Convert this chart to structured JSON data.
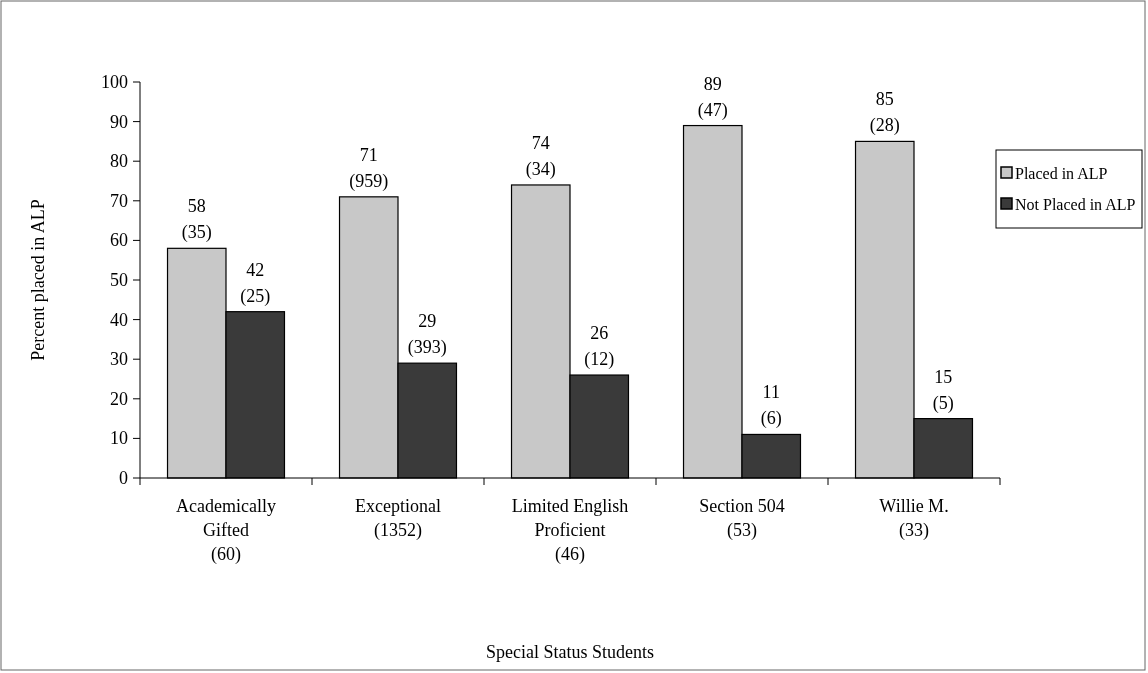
{
  "chart_data": {
    "type": "bar",
    "xlabel": "Special Status Students",
    "ylabel": "Percent placed in ALP",
    "categories": [
      "Academically\nGifted\n(60)",
      "Exceptional\n(1352)",
      "Limited English\nProficient\n(46)",
      "Section 504\n(53)",
      "Willie M.\n(33)"
    ],
    "series": [
      {
        "name": "Placed in ALP",
        "color": "#c8c8c8",
        "values": [
          58,
          71,
          74,
          89,
          85
        ],
        "value_labels": [
          "58\n(35)",
          "71\n(959)",
          "74\n(34)",
          "89\n(47)",
          "85\n(28)"
        ]
      },
      {
        "name": "Not Placed in ALP",
        "color": "#3a3a3a",
        "values": [
          42,
          29,
          26,
          11,
          15
        ],
        "value_labels": [
          "42\n(25)",
          "29\n(393)",
          "26\n(12)",
          "11\n(6)",
          "15\n(5)"
        ]
      }
    ],
    "ylim": [
      0,
      100
    ],
    "yticks": [
      0,
      10,
      20,
      30,
      40,
      50,
      60,
      70,
      80,
      90,
      100
    ],
    "grid": false,
    "legend": "right"
  }
}
